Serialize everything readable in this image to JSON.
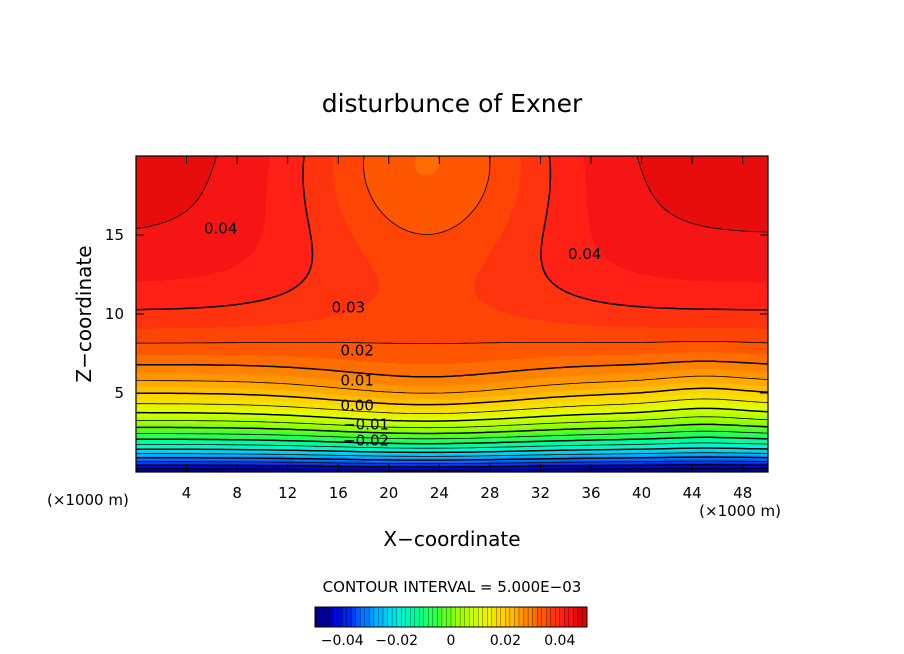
{
  "chart_data": {
    "type": "heatmap",
    "title": "disturbunce of Exner",
    "xlabel": "X−coordinate",
    "ylabel": "Z−coordinate",
    "x_unit_left": "(×1000 m)",
    "x_unit_right": "(×1000 m)",
    "xlim": [
      0,
      50
    ],
    "ylim": [
      0,
      20
    ],
    "x_ticks": [
      4,
      8,
      12,
      16,
      20,
      24,
      28,
      32,
      36,
      40,
      44,
      48
    ],
    "x_tick_labels": [
      "4",
      "8",
      "12",
      "16",
      "20",
      "24",
      "28",
      "32",
      "36",
      "40",
      "44",
      "48"
    ],
    "y_ticks": [
      5,
      10,
      15
    ],
    "y_tick_labels": [
      "5",
      "10",
      "15"
    ],
    "contour_interval_text": "CONTOUR INTERVAL = 5.000E−03",
    "contour_interval": 0.005,
    "value_range": [
      -0.05,
      0.05
    ],
    "contour_labels": [
      {
        "text": "0.04",
        "x": 6.7,
        "z": 15.4
      },
      {
        "text": "0.04",
        "x": 35.5,
        "z": 13.8
      },
      {
        "text": "0.03",
        "x": 16.8,
        "z": 10.4
      },
      {
        "text": "0.02",
        "x": 17.5,
        "z": 7.7
      },
      {
        "text": "0.01",
        "x": 17.5,
        "z": 5.8
      },
      {
        "text": "0.00",
        "x": 17.5,
        "z": 4.2
      },
      {
        "text": "−0.01",
        "x": 18.2,
        "z": 3.0
      },
      {
        "text": "−0.02",
        "x": 18.2,
        "z": 2.0
      }
    ],
    "colorbar": {
      "tick_labels": [
        "−0.04",
        "−0.02",
        "0",
        "0.02",
        "0.04"
      ],
      "tick_values": [
        -0.04,
        -0.02,
        0,
        0.02,
        0.04
      ]
    },
    "colorbar_colors": [
      "#000070",
      "#0000d0",
      "#0050ff",
      "#00b0ff",
      "#00f0e0",
      "#00ff90",
      "#40ff30",
      "#a0ff00",
      "#e0ff00",
      "#ffd000",
      "#ff9000",
      "#ff5000",
      "#ff1a1a",
      "#d00000"
    ]
  }
}
